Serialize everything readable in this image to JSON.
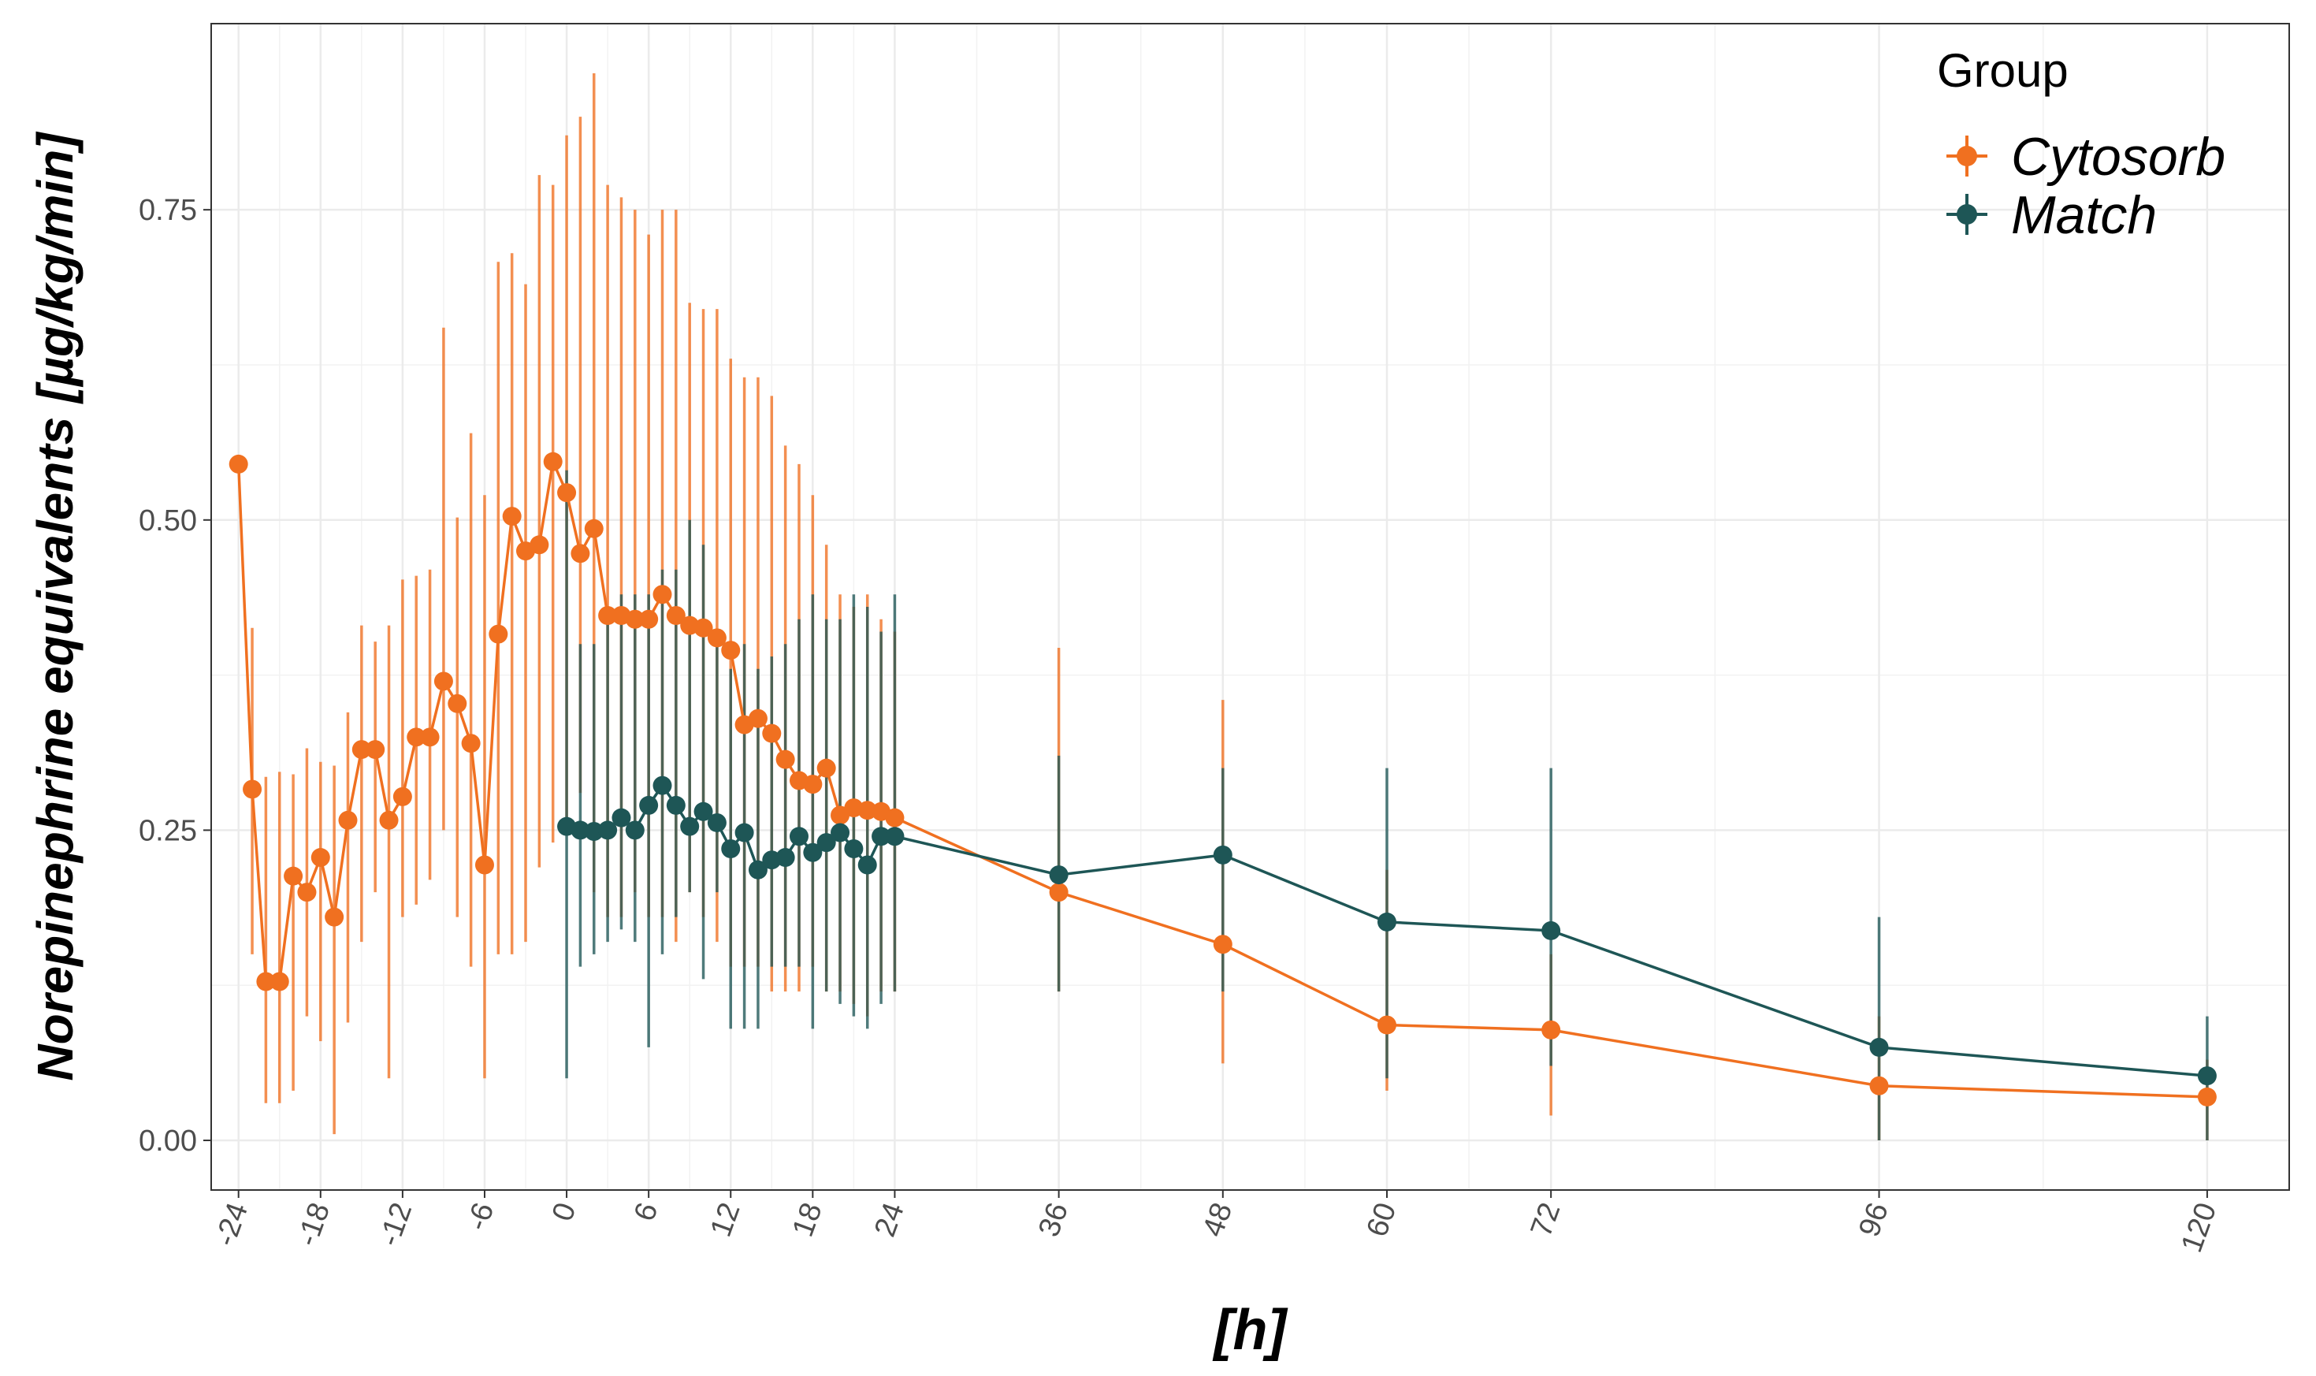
{
  "chart_data": {
    "type": "line",
    "title": "",
    "xlabel": "[h]",
    "ylabel": "Norepinephrine equivalents [µg/kg/min]",
    "xlim": [
      -26,
      126
    ],
    "ylim": [
      -0.04,
      0.9
    ],
    "xticks": [
      -24,
      -18,
      -12,
      -6,
      0,
      6,
      12,
      18,
      24,
      36,
      48,
      60,
      72,
      96,
      120
    ],
    "xtick_labels": [
      "-24",
      "-18",
      "-12",
      "-6",
      "0",
      "6",
      "12",
      "18",
      "24",
      "36",
      "48",
      "60",
      "72",
      "96",
      "120"
    ],
    "yticks": [
      0.0,
      0.25,
      0.5,
      0.75
    ],
    "ytick_labels": [
      "0.00",
      "0.25",
      "0.50",
      "0.75"
    ],
    "grid": true,
    "legend": {
      "title": "Group",
      "position": "top-right"
    },
    "series": [
      {
        "name": "Cytosorb",
        "color": "#F07020",
        "x": [
          -24,
          -23,
          -22,
          -21,
          -20,
          -19,
          -18,
          -17,
          -16,
          -15,
          -14,
          -13,
          -12,
          -11,
          -10,
          -9,
          -8,
          -7,
          -6,
          -5,
          -4,
          -3,
          -2,
          -1,
          0,
          1,
          2,
          3,
          4,
          5,
          6,
          7,
          8,
          9,
          10,
          11,
          12,
          13,
          14,
          15,
          16,
          17,
          18,
          19,
          20,
          21,
          22,
          23,
          24,
          36,
          48,
          60,
          72,
          96,
          120
        ],
        "y": [
          0.545,
          0.283,
          0.128,
          0.128,
          0.213,
          0.2,
          0.228,
          0.18,
          0.258,
          0.315,
          0.315,
          0.258,
          0.277,
          0.325,
          0.325,
          0.37,
          0.352,
          0.32,
          0.222,
          0.408,
          0.503,
          0.475,
          0.48,
          0.547,
          0.522,
          0.473,
          0.493,
          0.423,
          0.423,
          0.42,
          0.42,
          0.44,
          0.423,
          0.415,
          0.413,
          0.405,
          0.395,
          0.335,
          0.34,
          0.328,
          0.307,
          0.29,
          0.287,
          0.3,
          0.262,
          0.268,
          0.266,
          0.265,
          0.26,
          0.2,
          0.158,
          0.093,
          0.089,
          0.044,
          0.035
        ],
        "lower": [
          0.545,
          0.15,
          0.03,
          0.03,
          0.04,
          0.1,
          0.08,
          0.005,
          0.095,
          0.16,
          0.2,
          0.05,
          0.18,
          0.19,
          0.21,
          0.25,
          0.18,
          0.14,
          0.05,
          0.15,
          0.15,
          0.16,
          0.22,
          0.24,
          0.26,
          0.28,
          0.2,
          0.18,
          0.18,
          0.2,
          0.18,
          0.18,
          0.16,
          0.2,
          0.18,
          0.16,
          0.14,
          0.14,
          0.14,
          0.12,
          0.12,
          0.12,
          0.14,
          0.12,
          0.12,
          0.11,
          0.1,
          0.12,
          0.12,
          0.12,
          0.062,
          0.04,
          0.02,
          0.0,
          0.0
        ],
        "upper": [
          0.545,
          0.413,
          0.293,
          0.297,
          0.295,
          0.316,
          0.305,
          0.302,
          0.345,
          0.415,
          0.402,
          0.415,
          0.452,
          0.455,
          0.46,
          0.655,
          0.502,
          0.57,
          0.52,
          0.708,
          0.715,
          0.69,
          0.778,
          0.77,
          0.81,
          0.825,
          0.86,
          0.77,
          0.76,
          0.75,
          0.73,
          0.75,
          0.75,
          0.675,
          0.67,
          0.67,
          0.63,
          0.615,
          0.615,
          0.6,
          0.56,
          0.545,
          0.52,
          0.48,
          0.44,
          0.43,
          0.44,
          0.42,
          0.41,
          0.397,
          0.355,
          0.218,
          0.15,
          0.1,
          0.065
        ]
      },
      {
        "name": "Match",
        "color": "#1E5656",
        "x": [
          0,
          1,
          2,
          3,
          4,
          5,
          6,
          7,
          8,
          9,
          10,
          11,
          12,
          13,
          14,
          15,
          16,
          17,
          18,
          19,
          20,
          21,
          22,
          23,
          24,
          36,
          48,
          60,
          72,
          96,
          120
        ],
        "y": [
          0.253,
          0.25,
          0.249,
          0.25,
          0.26,
          0.25,
          0.27,
          0.286,
          0.27,
          0.253,
          0.265,
          0.256,
          0.235,
          0.248,
          0.218,
          0.226,
          0.228,
          0.245,
          0.232,
          0.24,
          0.248,
          0.235,
          0.222,
          0.245,
          0.245,
          0.214,
          0.23,
          0.176,
          0.169,
          0.075,
          0.052
        ],
        "lower": [
          0.05,
          0.14,
          0.15,
          0.16,
          0.17,
          0.16,
          0.075,
          0.15,
          0.18,
          0.2,
          0.13,
          0.2,
          0.09,
          0.09,
          0.09,
          0.14,
          0.14,
          0.14,
          0.09,
          0.12,
          0.11,
          0.1,
          0.09,
          0.11,
          0.12,
          0.12,
          0.12,
          0.05,
          0.06,
          0.0,
          0.0
        ],
        "upper": [
          0.54,
          0.4,
          0.4,
          0.43,
          0.44,
          0.44,
          0.44,
          0.46,
          0.46,
          0.5,
          0.48,
          0.4,
          0.38,
          0.4,
          0.38,
          0.39,
          0.4,
          0.42,
          0.44,
          0.42,
          0.42,
          0.44,
          0.43,
          0.41,
          0.44,
          0.31,
          0.3,
          0.3,
          0.3,
          0.18,
          0.1
        ]
      }
    ]
  }
}
